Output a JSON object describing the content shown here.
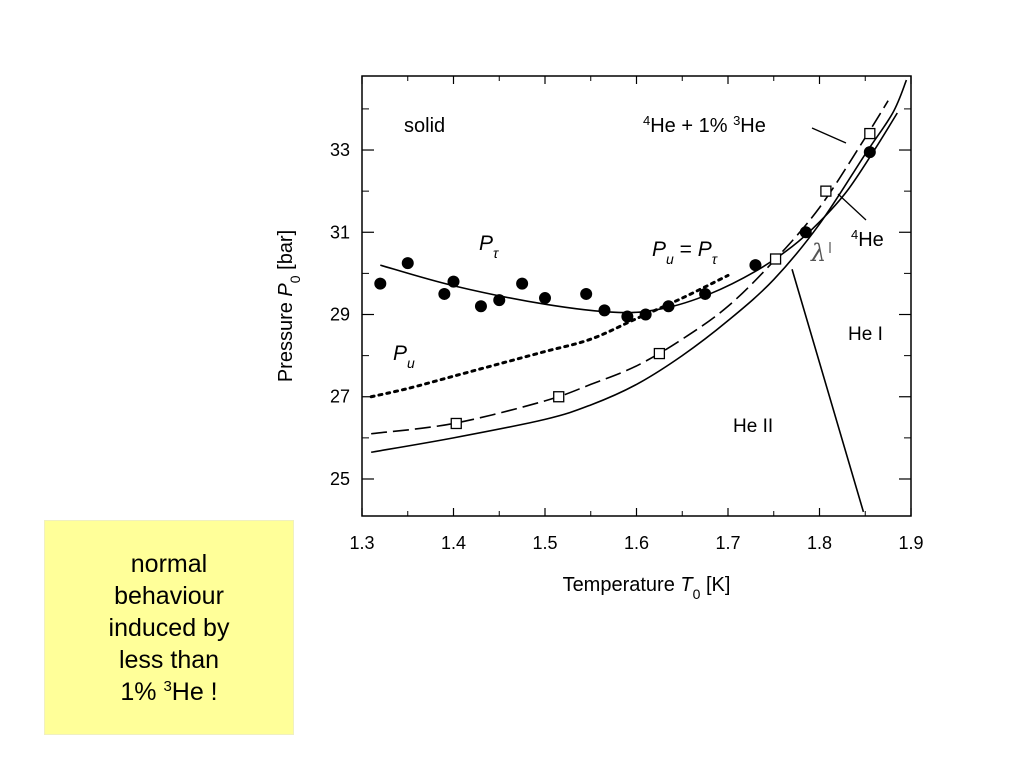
{
  "chart_data": {
    "type": "scatter",
    "title": "",
    "xlabel": {
      "prefix": "Temperature ",
      "sym": "T",
      "sub": "0",
      "suffix": " [K]"
    },
    "ylabel": {
      "prefix": "Pressure ",
      "sym": "P",
      "sub": "0",
      "suffix": "  [bar]"
    },
    "xlim": [
      1.3,
      1.9
    ],
    "ylim": [
      24.1,
      34.8
    ],
    "x_ticks": [
      1.3,
      1.4,
      1.5,
      1.6,
      1.7,
      1.8,
      1.9
    ],
    "x_tick_labels": [
      "1.3",
      "1.4",
      "1.5",
      "1.6",
      "1.7",
      "1.8",
      "1.9"
    ],
    "y_ticks": [
      25,
      27,
      29,
      31,
      33
    ],
    "y_tick_labels": [
      "25",
      "27",
      "29",
      "31",
      "33"
    ],
    "grid": false,
    "series": [
      {
        "name_parts": [
          {
            "t": "P",
            "i": true
          },
          {
            "t": "τ",
            "i": true
          }
        ],
        "role": "points",
        "marker": "filled-circle",
        "points": [
          [
            1.32,
            29.75
          ],
          [
            1.35,
            30.25
          ],
          [
            1.39,
            29.5
          ],
          [
            1.4,
            29.8
          ],
          [
            1.43,
            29.2
          ],
          [
            1.45,
            29.35
          ],
          [
            1.475,
            29.75
          ],
          [
            1.5,
            29.4
          ],
          [
            1.545,
            29.5
          ],
          [
            1.565,
            29.1
          ],
          [
            1.59,
            28.95
          ],
          [
            1.61,
            29.0
          ],
          [
            1.635,
            29.2
          ],
          [
            1.675,
            29.5
          ],
          [
            1.73,
            30.2
          ],
          [
            1.785,
            31.0
          ],
          [
            1.855,
            32.95
          ]
        ]
      },
      {
        "name_parts": [
          {
            "t": "P",
            "i": true
          },
          {
            "t": "τ",
            "i": true
          }
        ],
        "role": "fit",
        "line": "solid",
        "points": [
          [
            1.32,
            30.2
          ],
          [
            1.4,
            29.7
          ],
          [
            1.5,
            29.25
          ],
          [
            1.58,
            29.05
          ],
          [
            1.63,
            29.15
          ],
          [
            1.68,
            29.5
          ],
          [
            1.73,
            30.05
          ],
          [
            1.77,
            30.65
          ],
          [
            1.8,
            31.25
          ],
          [
            1.83,
            32.0
          ],
          [
            1.86,
            33.0
          ],
          [
            1.885,
            33.9
          ]
        ]
      },
      {
        "name_parts": [
          {
            "t": "P",
            "i": true
          },
          {
            "t": "u",
            "i": true
          }
        ],
        "role": "curve",
        "line": "dotted",
        "points": [
          [
            1.31,
            27.0
          ],
          [
            1.35,
            27.2
          ],
          [
            1.4,
            27.5
          ],
          [
            1.45,
            27.8
          ],
          [
            1.5,
            28.1
          ],
          [
            1.55,
            28.4
          ],
          [
            1.6,
            28.9
          ],
          [
            1.65,
            29.4
          ],
          [
            1.7,
            29.95
          ]
        ]
      },
      {
        "name_parts": [
          {
            "t": "4",
            "sup": true
          },
          {
            "t": "He + 1% "
          },
          {
            "t": "3",
            "sup": true
          },
          {
            "t": "He"
          }
        ],
        "role": "curve",
        "line": "dashed",
        "points": [
          [
            1.31,
            26.1
          ],
          [
            1.4,
            26.35
          ],
          [
            1.5,
            26.9
          ],
          [
            1.55,
            27.3
          ],
          [
            1.6,
            27.75
          ],
          [
            1.65,
            28.4
          ],
          [
            1.7,
            29.2
          ],
          [
            1.75,
            30.3
          ],
          [
            1.8,
            31.6
          ],
          [
            1.85,
            33.3
          ],
          [
            1.875,
            34.2
          ]
        ]
      },
      {
        "name_parts": [
          {
            "t": "4",
            "sup": true
          },
          {
            "t": "He + 1% "
          },
          {
            "t": "3",
            "sup": true
          },
          {
            "t": "He"
          }
        ],
        "role": "points",
        "marker": "open-square",
        "points": [
          [
            1.403,
            26.35
          ],
          [
            1.515,
            27.0
          ],
          [
            1.625,
            28.05
          ],
          [
            1.752,
            30.35
          ],
          [
            1.807,
            32.0
          ],
          [
            1.855,
            33.4
          ]
        ]
      },
      {
        "name_parts": [
          {
            "t": "4",
            "sup": true
          },
          {
            "t": "He"
          }
        ],
        "role": "curve",
        "line": "solid",
        "points": [
          [
            1.31,
            25.65
          ],
          [
            1.4,
            26.0
          ],
          [
            1.5,
            26.45
          ],
          [
            1.55,
            26.8
          ],
          [
            1.6,
            27.3
          ],
          [
            1.65,
            28.0
          ],
          [
            1.7,
            28.85
          ],
          [
            1.75,
            29.85
          ],
          [
            1.8,
            31.2
          ],
          [
            1.85,
            32.9
          ],
          [
            1.88,
            33.9
          ],
          [
            1.895,
            34.7
          ]
        ]
      },
      {
        "name_parts": [
          {
            "t": "λ",
            "i": true
          }
        ],
        "role": "lambda-line",
        "line": "solid",
        "points": [
          [
            1.77,
            30.1
          ],
          [
            1.848,
            24.2
          ]
        ]
      }
    ],
    "annotations": {
      "solid": "solid",
      "p_tau": [
        {
          "t": "P",
          "i": true
        },
        {
          "t": "τ",
          "i": true,
          "sub": true
        }
      ],
      "pu_eq_ptau": [
        {
          "t": "P",
          "i": true
        },
        {
          "t": "u",
          "i": true,
          "sub": true
        },
        {
          "t": " = "
        },
        {
          "t": "P",
          "i": true
        },
        {
          "t": "τ",
          "i": true,
          "sub": true
        }
      ],
      "p_u": [
        {
          "t": "P",
          "i": true
        },
        {
          "t": "u",
          "i": true,
          "sub": true
        }
      ],
      "mix_label": [
        {
          "t": "4",
          "sup": true
        },
        {
          "t": "He + 1% "
        },
        {
          "t": "3",
          "sup": true
        },
        {
          "t": "He"
        }
      ],
      "he4_label": [
        {
          "t": "4",
          "sup": true
        },
        {
          "t": "He"
        }
      ],
      "lambda": "λ",
      "he_i": "He I",
      "he_ii": "He II"
    }
  },
  "callout": {
    "lines": [
      [
        {
          "t": "normal"
        }
      ],
      [
        {
          "t": "behaviour"
        }
      ],
      [
        {
          "t": "induced by"
        }
      ],
      [
        {
          "t": "less than"
        }
      ],
      [
        {
          "t": "1% "
        },
        {
          "t": "3",
          "sup": true
        },
        {
          "t": "He !"
        }
      ]
    ],
    "background": "#ffff99"
  }
}
